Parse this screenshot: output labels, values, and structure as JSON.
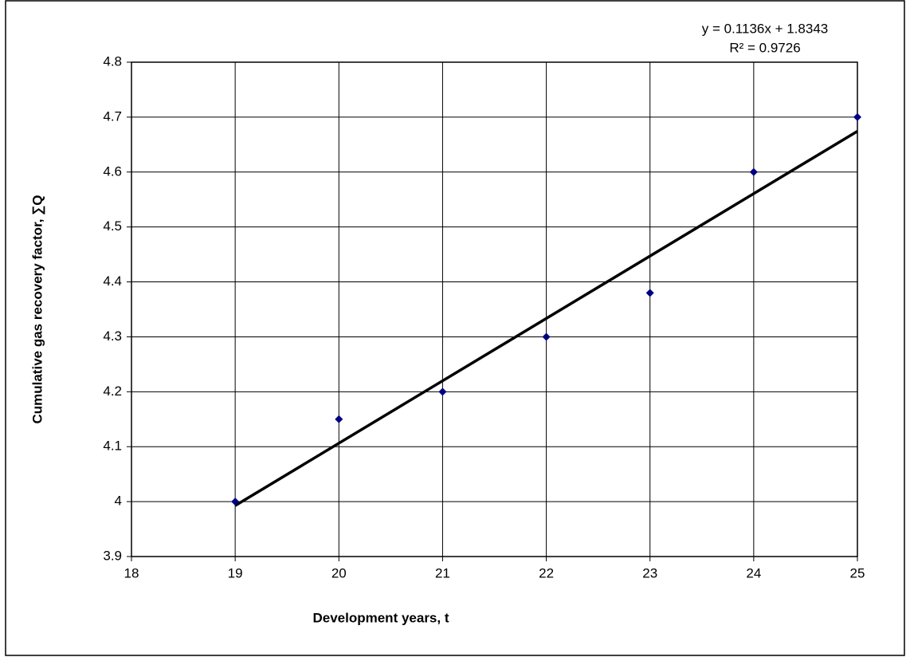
{
  "chart_data": {
    "type": "scatter",
    "x_label": "Development years, t",
    "y_label": "Cumulative gas recovery factor, ∑Q",
    "x": [
      19,
      20,
      21,
      22,
      23,
      24,
      25
    ],
    "series": [
      {
        "color": "#000080",
        "values": [
          4.0,
          4.15,
          4.2,
          4.3,
          4.38,
          4.6,
          4.7
        ]
      }
    ],
    "trendline": {
      "equation": "y = 0.1136x + 1.8343",
      "slope": 0.1136,
      "intercept": 1.8343,
      "r2_label": "R² = 0.9726",
      "r2": 0.9726,
      "color": "#000000"
    },
    "xlim": [
      18,
      25
    ],
    "xticks": [
      18,
      19,
      20,
      21,
      22,
      23,
      24,
      25
    ],
    "ylim": [
      3.9,
      4.8
    ],
    "yticks": [
      3.9,
      4,
      4.1,
      4.2,
      4.3,
      4.4,
      4.5,
      4.6,
      4.7,
      4.8
    ],
    "grid": true
  }
}
